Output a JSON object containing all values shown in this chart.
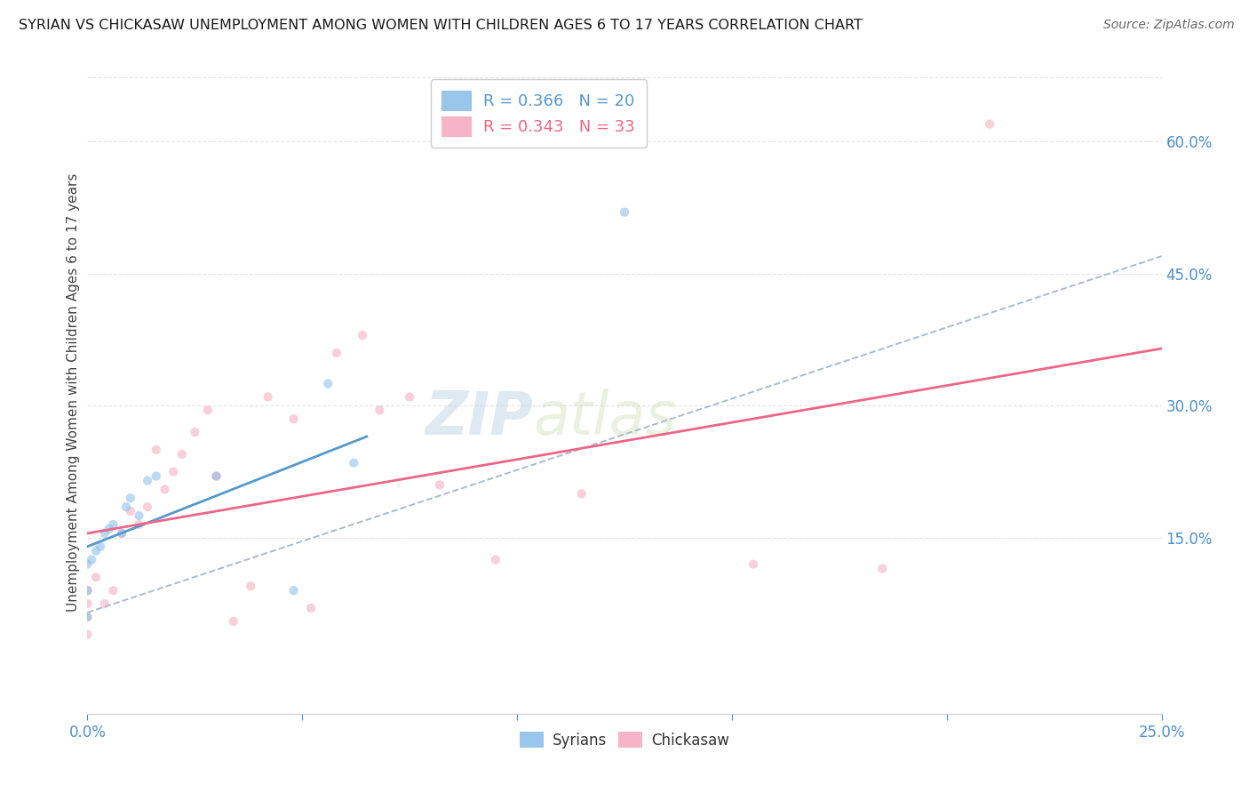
{
  "title": "SYRIAN VS CHICKASAW UNEMPLOYMENT AMONG WOMEN WITH CHILDREN AGES 6 TO 17 YEARS CORRELATION CHART",
  "source": "Source: ZipAtlas.com",
  "ylabel": "Unemployment Among Women with Children Ages 6 to 17 years",
  "xlim": [
    0.0,
    0.25
  ],
  "ylim": [
    -0.05,
    0.68
  ],
  "xticks": [
    0.0,
    0.05,
    0.1,
    0.15,
    0.2,
    0.25
  ],
  "xtick_labels": [
    "0.0%",
    "",
    "",
    "",
    "",
    "25.0%"
  ],
  "yticks_right": [
    0.15,
    0.3,
    0.45,
    0.6
  ],
  "ytick_labels_right": [
    "15.0%",
    "30.0%",
    "45.0%",
    "60.0%"
  ],
  "legend_r_syrian": "R = 0.366",
  "legend_n_syrian": "N = 20",
  "legend_r_chickasaw": "R = 0.343",
  "legend_n_chickasaw": "N = 33",
  "syrian_color": "#87bce8",
  "chickasaw_color": "#f5a8bc",
  "syrian_line_color": "#5599cc",
  "chickasaw_line_color": "#ee6688",
  "watermark": "ZIPatlas",
  "syrian_dots_x": [
    0.0,
    0.0,
    0.0,
    0.001,
    0.002,
    0.003,
    0.004,
    0.005,
    0.006,
    0.008,
    0.009,
    0.01,
    0.012,
    0.014,
    0.016,
    0.03,
    0.048,
    0.056,
    0.062,
    0.125
  ],
  "syrian_dots_y": [
    0.06,
    0.09,
    0.12,
    0.125,
    0.135,
    0.14,
    0.155,
    0.16,
    0.165,
    0.155,
    0.185,
    0.195,
    0.175,
    0.215,
    0.22,
    0.22,
    0.09,
    0.325,
    0.235,
    0.52
  ],
  "chickasaw_dots_x": [
    0.0,
    0.0,
    0.0,
    0.0,
    0.002,
    0.004,
    0.006,
    0.008,
    0.01,
    0.012,
    0.014,
    0.016,
    0.018,
    0.02,
    0.022,
    0.025,
    0.028,
    0.03,
    0.034,
    0.038,
    0.042,
    0.048,
    0.052,
    0.058,
    0.064,
    0.068,
    0.075,
    0.082,
    0.095,
    0.115,
    0.155,
    0.185,
    0.21
  ],
  "chickasaw_dots_y": [
    0.04,
    0.06,
    0.075,
    0.09,
    0.105,
    0.075,
    0.09,
    0.155,
    0.18,
    0.165,
    0.185,
    0.25,
    0.205,
    0.225,
    0.245,
    0.27,
    0.295,
    0.22,
    0.055,
    0.095,
    0.31,
    0.285,
    0.07,
    0.36,
    0.38,
    0.295,
    0.31,
    0.21,
    0.125,
    0.2,
    0.12,
    0.115,
    0.62
  ],
  "syrian_solid_line": [
    0.0,
    0.065,
    0.14,
    0.265
  ],
  "syrian_dashed_line": [
    0.0,
    0.25,
    0.065,
    0.47
  ],
  "chickasaw_solid_line": [
    0.0,
    0.25,
    0.155,
    0.365
  ],
  "grid_color": "#e5e5e5",
  "bg_color": "#ffffff",
  "title_color": "#1a1a1a",
  "axis_label_color": "#4d8fcc",
  "dot_size": 55,
  "dot_alpha": 0.55
}
